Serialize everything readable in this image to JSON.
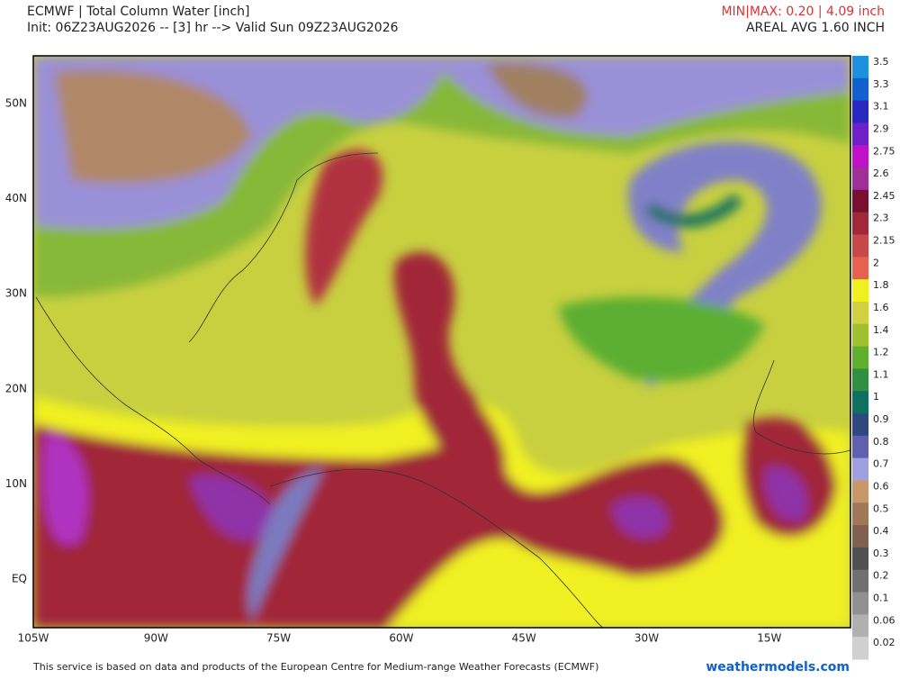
{
  "header": {
    "title": "ECMWF | Total Column Water [inch]",
    "init": "Init: 06Z23AUG2026 -- [3] hr --> Valid Sun 09Z23AUG2026",
    "minmax": "MIN|MAX: 0.20 | 4.09 inch",
    "areal_avg": "AREAL AVG 1.60 INCH"
  },
  "map": {
    "lat_labels": [
      "50N",
      "40N",
      "30N",
      "20N",
      "10N",
      "EQ"
    ],
    "lon_labels": [
      "105W",
      "90W",
      "75W",
      "60W",
      "45W",
      "30W",
      "15W"
    ]
  },
  "colorbar": [
    {
      "label": "3.5",
      "color": "#1e90e0"
    },
    {
      "label": "3.3",
      "color": "#1060d0"
    },
    {
      "label": "3.1",
      "color": "#2828c0"
    },
    {
      "label": "2.9",
      "color": "#7020c8"
    },
    {
      "label": "2.75",
      "color": "#c010c8"
    },
    {
      "label": "2.6",
      "color": "#a03098"
    },
    {
      "label": "2.45",
      "color": "#7a1030"
    },
    {
      "label": "2.3",
      "color": "#a02838"
    },
    {
      "label": "2.15",
      "color": "#c84848"
    },
    {
      "label": "2",
      "color": "#e86050"
    },
    {
      "label": "1.8",
      "color": "#f0f020"
    },
    {
      "label": "1.6",
      "color": "#d0d040"
    },
    {
      "label": "1.4",
      "color": "#a0c030"
    },
    {
      "label": "1.2",
      "color": "#60b030"
    },
    {
      "label": "1.1",
      "color": "#309040"
    },
    {
      "label": "1",
      "color": "#107060"
    },
    {
      "label": "0.9",
      "color": "#304880"
    },
    {
      "label": "0.8",
      "color": "#6060b0"
    },
    {
      "label": "0.7",
      "color": "#a0a0e0"
    },
    {
      "label": "0.6",
      "color": "#c89868"
    },
    {
      "label": "0.5",
      "color": "#a07858"
    },
    {
      "label": "0.4",
      "color": "#806050"
    },
    {
      "label": "0.3",
      "color": "#505050"
    },
    {
      "label": "0.2",
      "color": "#707070"
    },
    {
      "label": "0.1",
      "color": "#909090"
    },
    {
      "label": "0.06",
      "color": "#b0b0b0"
    },
    {
      "label": "0.02",
      "color": "#d0d0d0"
    }
  ],
  "footer": {
    "credit": "This service is based on data and products of the European Centre for Medium-range Weather Forecasts (ECMWF)",
    "site": "weathermodels.com"
  }
}
